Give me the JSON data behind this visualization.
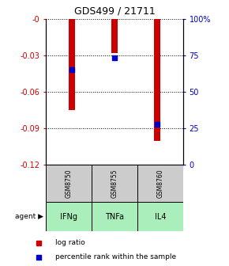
{
  "title": "GDS499 / 21711",
  "categories": [
    "IFNg",
    "TNFa",
    "IL4"
  ],
  "gsm_labels": [
    "GSM8750",
    "GSM8755",
    "GSM8760"
  ],
  "log_ratios": [
    -0.075,
    -0.028,
    -0.1
  ],
  "percentile_ranks": [
    65,
    73,
    28
  ],
  "ylim_left": [
    -0.12,
    0.0
  ],
  "ylim_right": [
    0,
    100
  ],
  "yticks_left": [
    0,
    -0.03,
    -0.06,
    -0.09,
    -0.12
  ],
  "yticks_right": [
    0,
    25,
    50,
    75,
    100
  ],
  "bar_color": "#cc0000",
  "dot_color": "#0000cc",
  "gsm_box_color": "#cccccc",
  "agent_box_color": "#aaeebb",
  "left_label_color": "#cc0000",
  "right_label_color": "#0000cc",
  "bar_width": 0.15
}
